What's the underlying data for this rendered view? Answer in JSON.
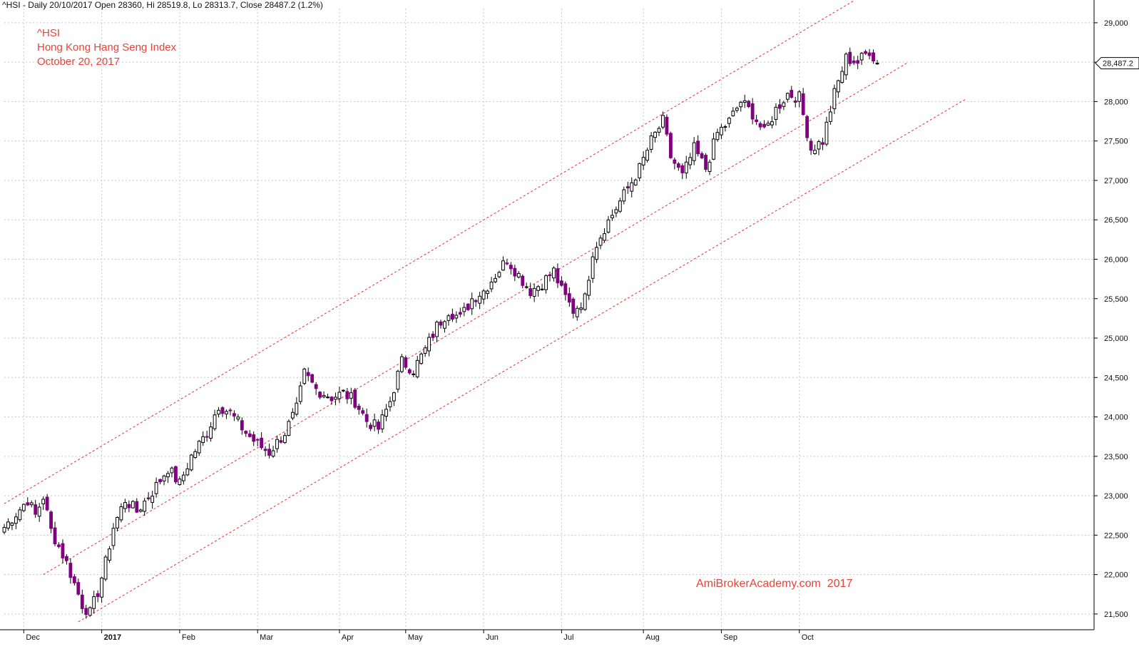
{
  "header": {
    "text": "^HSI - Daily 20/10/2017 Open 28360, Hi 28519.8, Lo 28313.7, Close 28487.2 (1.2%)"
  },
  "annotations": {
    "symbol": "^HSI",
    "name": "Hong Kong Hang Seng Index",
    "date": "October 20, 2017",
    "watermark": "AmiBrokerAcademy.com  2017"
  },
  "colors": {
    "bullish_fill": "#ffffff",
    "bearish_fill": "#800080",
    "candle_outline": "#000000",
    "channel_line": "#e83030",
    "grid": "#c8c8c8",
    "last_price_bg": "#ffffff"
  },
  "chart_data": {
    "type": "candlestick",
    "symbol": "^HSI",
    "period": "Daily",
    "y_ticks": [
      21500,
      22000,
      22500,
      23000,
      23500,
      24000,
      24500,
      25000,
      25500,
      26000,
      26500,
      27000,
      27500,
      28000,
      28500,
      29000
    ],
    "y_tick_labels": [
      "21,500",
      "22,000",
      "22,500",
      "23,000",
      "23,500",
      "24,000",
      "24,500",
      "25,000",
      "25,500",
      "26,000",
      "26,500",
      "27,000",
      "27,500",
      "28,000",
      "28,500",
      "29,000"
    ],
    "ylim": [
      21300,
      29180
    ],
    "last_price": 28487.2,
    "last_price_label": "28,487.2",
    "months": [
      "Dec",
      "2017",
      "Feb",
      "Mar",
      "Apr",
      "May",
      "Jun",
      "Jul",
      "Aug",
      "Sep",
      "Oct"
    ],
    "month_start_index": [
      5,
      25,
      45,
      65,
      86,
      103,
      123,
      143,
      164,
      184,
      204
    ],
    "x_count": 225,
    "ohlc_anchor_closes": [
      [
        0,
        22600
      ],
      [
        4,
        22830
      ],
      [
        6,
        22950
      ],
      [
        8,
        22750
      ],
      [
        10,
        22990
      ],
      [
        12,
        22560
      ],
      [
        16,
        22150
      ],
      [
        20,
        21620
      ],
      [
        22,
        21510
      ],
      [
        24,
        21780
      ],
      [
        26,
        22150
      ],
      [
        28,
        22600
      ],
      [
        31,
        22950
      ],
      [
        34,
        22800
      ],
      [
        38,
        23050
      ],
      [
        42,
        23350
      ],
      [
        45,
        23150
      ],
      [
        48,
        23500
      ],
      [
        52,
        23800
      ],
      [
        55,
        24150
      ],
      [
        58,
        24050
      ],
      [
        62,
        23800
      ],
      [
        65,
        23650
      ],
      [
        68,
        23550
      ],
      [
        72,
        23800
      ],
      [
        75,
        24100
      ],
      [
        77,
        24550
      ],
      [
        80,
        24350
      ],
      [
        84,
        24250
      ],
      [
        87,
        24300
      ],
      [
        90,
        24200
      ],
      [
        93,
        23950
      ],
      [
        96,
        23850
      ],
      [
        99,
        24200
      ],
      [
        102,
        24700
      ],
      [
        105,
        24600
      ],
      [
        108,
        24850
      ],
      [
        111,
        25150
      ],
      [
        114,
        25350
      ],
      [
        117,
        25250
      ],
      [
        120,
        25500
      ],
      [
        123,
        25600
      ],
      [
        126,
        25800
      ],
      [
        129,
        26000
      ],
      [
        132,
        25800
      ],
      [
        135,
        25600
      ],
      [
        138,
        25700
      ],
      [
        141,
        25850
      ],
      [
        143,
        25600
      ],
      [
        146,
        25350
      ],
      [
        149,
        25500
      ],
      [
        151,
        26100
      ],
      [
        154,
        26400
      ],
      [
        157,
        26650
      ],
      [
        160,
        26900
      ],
      [
        163,
        27150
      ],
      [
        166,
        27500
      ],
      [
        169,
        27750
      ],
      [
        171,
        27300
      ],
      [
        174,
        27050
      ],
      [
        177,
        27400
      ],
      [
        180,
        27150
      ],
      [
        183,
        27600
      ],
      [
        186,
        27750
      ],
      [
        189,
        28000
      ],
      [
        192,
        27850
      ],
      [
        195,
        27600
      ],
      [
        198,
        27900
      ],
      [
        201,
        28100
      ],
      [
        204,
        28050
      ],
      [
        207,
        27400
      ],
      [
        210,
        27500
      ],
      [
        213,
        28100
      ],
      [
        216,
        28550
      ],
      [
        219,
        28500
      ],
      [
        222,
        28650
      ],
      [
        224,
        28487.2
      ]
    ],
    "channel_lines": [
      {
        "name": "upper",
        "start": [
          0,
          22900
        ],
        "end": [
          218,
          29280
        ]
      },
      {
        "name": "middle",
        "start": [
          10,
          22000
        ],
        "end": [
          232,
          28500
        ]
      },
      {
        "name": "lower",
        "start": [
          19,
          21400
        ],
        "end": [
          247,
          28040
        ]
      }
    ]
  }
}
